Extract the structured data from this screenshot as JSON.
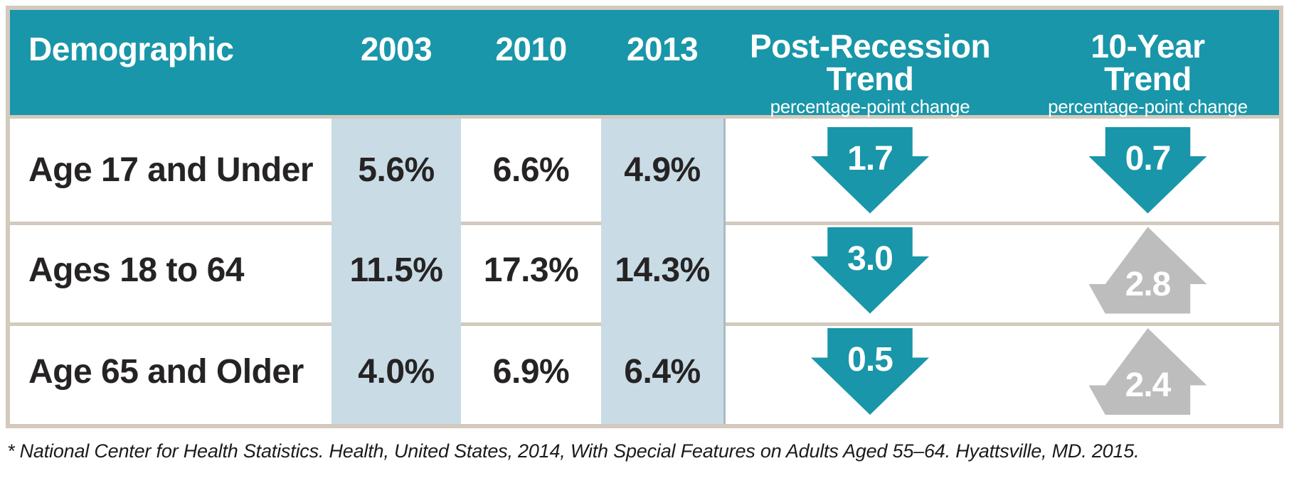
{
  "table": {
    "header": {
      "demographic": "Demographic",
      "col_2003": "2003",
      "col_2010": "2010",
      "col_2013": "2013",
      "post_recession": {
        "line1": "Post-Recession",
        "line2": "Trend",
        "subtitle": "percentage-point change"
      },
      "ten_year": {
        "line1": "10-Year",
        "line2": "Trend",
        "subtitle": "percentage-point change"
      }
    },
    "rows": [
      {
        "label": "Age 17 and Under",
        "y2003": "5.6%",
        "y2010": "6.6%",
        "y2013": "4.9%",
        "post_recession": {
          "value": "1.7",
          "direction": "down"
        },
        "ten_year": {
          "value": "0.7",
          "direction": "down"
        }
      },
      {
        "label": "Ages 18 to 64",
        "y2003": "11.5%",
        "y2010": "17.3%",
        "y2013": "14.3%",
        "post_recession": {
          "value": "3.0",
          "direction": "down"
        },
        "ten_year": {
          "value": "2.8",
          "direction": "up"
        }
      },
      {
        "label": "Age 65 and Older",
        "y2003": "4.0%",
        "y2010": "6.9%",
        "y2013": "6.4%",
        "post_recession": {
          "value": "0.5",
          "direction": "down"
        },
        "ten_year": {
          "value": "2.4",
          "direction": "up"
        }
      }
    ]
  },
  "footnote": "* National Center for Health Statistics. Health, United States, 2014, With Special Features on Adults Aged 55–64. Hyattsville, MD. 2015.",
  "colors": {
    "teal": "#1996A9",
    "light_blue": "#C9DCE6",
    "gray_arrow": "#BDBDBD",
    "separator_tan": "#D3C9BD",
    "text_dark": "#262324",
    "divider_gray": "#A9BBC2"
  },
  "chart_data": {
    "type": "table",
    "title": "",
    "columns": [
      "Demographic",
      "2003",
      "2010",
      "2013",
      "Post-Recession Trend (percentage-point change)",
      "10-Year Trend (percentage-point change)"
    ],
    "rows": [
      [
        "Age 17 and Under",
        "5.6%",
        "6.6%",
        "4.9%",
        "-1.7",
        "-0.7"
      ],
      [
        "Ages 18 to 64",
        "11.5%",
        "17.3%",
        "14.3%",
        "-3.0",
        "+2.8"
      ],
      [
        "Age 65 and Older",
        "4.0%",
        "6.9%",
        "6.4%",
        "-0.5",
        "+2.4"
      ]
    ],
    "legend": "Teal down arrow = percentage-point decrease; gray up arrow = percentage-point increase. Columns 2003 and 2013 are shaded light blue.",
    "footnote": "* National Center for Health Statistics. Health, United States, 2014, With Special Features on Adults Aged 55–64. Hyattsville, MD. 2015."
  }
}
